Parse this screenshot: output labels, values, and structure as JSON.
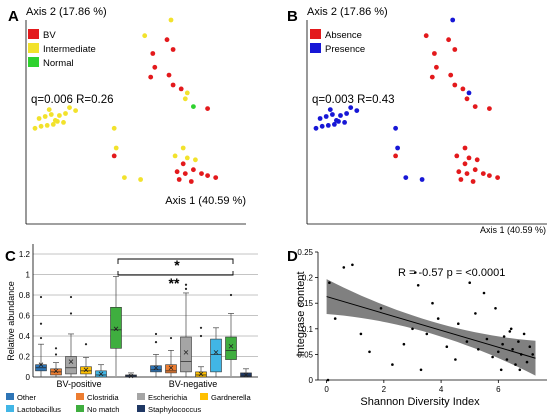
{
  "chart_data": [
    {
      "panel": "A",
      "type": "scatter",
      "xlabel": "Axis 1 (40.59 %)",
      "ylabel": "Axis 2 (17.86 %)",
      "stat": "q=0.006 R=0.26",
      "legend": [
        {
          "label": "BV",
          "color": "#e3191c"
        },
        {
          "label": "Intermediate",
          "color": "#f2e22c"
        },
        {
          "label": "Normal",
          "color": "#2ed22e"
        }
      ],
      "points": [
        {
          "x": 0.01,
          "y": 0.44,
          "g": 1
        },
        {
          "x": 0.04,
          "y": 0.45,
          "g": 1
        },
        {
          "x": 0.07,
          "y": 0.455,
          "g": 1
        },
        {
          "x": 0.1,
          "y": 0.46,
          "g": 1
        },
        {
          "x": 0.12,
          "y": 0.475,
          "g": 1
        },
        {
          "x": 0.15,
          "y": 0.47,
          "g": 1
        },
        {
          "x": 0.03,
          "y": 0.49,
          "g": 1
        },
        {
          "x": 0.06,
          "y": 0.5,
          "g": 1
        },
        {
          "x": 0.09,
          "y": 0.51,
          "g": 1
        },
        {
          "x": 0.13,
          "y": 0.505,
          "g": 1
        },
        {
          "x": 0.16,
          "y": 0.515,
          "g": 1
        },
        {
          "x": 0.08,
          "y": 0.535,
          "g": 1
        },
        {
          "x": 0.18,
          "y": 0.545,
          "g": 1
        },
        {
          "x": 0.21,
          "y": 0.53,
          "g": 1
        },
        {
          "x": 0.11,
          "y": 0.48,
          "g": 1
        },
        {
          "x": 0.4,
          "y": 0.44,
          "g": 1
        },
        {
          "x": 0.41,
          "y": 0.34,
          "g": 1
        },
        {
          "x": 0.45,
          "y": 0.19,
          "g": 1
        },
        {
          "x": 0.53,
          "y": 0.18,
          "g": 1
        },
        {
          "x": 0.55,
          "y": 0.91,
          "g": 1
        },
        {
          "x": 0.68,
          "y": 0.99,
          "g": 1
        },
        {
          "x": 0.7,
          "y": 0.3,
          "g": 1
        },
        {
          "x": 0.74,
          "y": 0.34,
          "g": 1
        },
        {
          "x": 0.76,
          "y": 0.29,
          "g": 1
        },
        {
          "x": 0.8,
          "y": 0.28,
          "g": 1
        },
        {
          "x": 0.75,
          "y": 0.59,
          "g": 1
        },
        {
          "x": 0.76,
          "y": 0.62,
          "g": 1
        },
        {
          "x": 0.79,
          "y": 0.55,
          "g": 2
        },
        {
          "x": 0.59,
          "y": 0.82,
          "g": 0
        },
        {
          "x": 0.69,
          "y": 0.84,
          "g": 0
        },
        {
          "x": 0.66,
          "y": 0.89,
          "g": 0
        },
        {
          "x": 0.6,
          "y": 0.75,
          "g": 0
        },
        {
          "x": 0.58,
          "y": 0.7,
          "g": 0
        },
        {
          "x": 0.67,
          "y": 0.71,
          "g": 0
        },
        {
          "x": 0.69,
          "y": 0.66,
          "g": 0
        },
        {
          "x": 0.73,
          "y": 0.64,
          "g": 0
        },
        {
          "x": 0.86,
          "y": 0.54,
          "g": 0
        },
        {
          "x": 0.4,
          "y": 0.3,
          "g": 0
        },
        {
          "x": 0.74,
          "y": 0.26,
          "g": 0
        },
        {
          "x": 0.71,
          "y": 0.22,
          "g": 0
        },
        {
          "x": 0.75,
          "y": 0.21,
          "g": 0
        },
        {
          "x": 0.79,
          "y": 0.23,
          "g": 0
        },
        {
          "x": 0.83,
          "y": 0.21,
          "g": 0
        },
        {
          "x": 0.86,
          "y": 0.2,
          "g": 0
        },
        {
          "x": 0.9,
          "y": 0.19,
          "g": 0
        },
        {
          "x": 0.78,
          "y": 0.17,
          "g": 0
        },
        {
          "x": 0.72,
          "y": 0.18,
          "g": 0
        }
      ]
    },
    {
      "panel": "B",
      "type": "scatter",
      "xlabel": "Axis 1 (40.59 %)",
      "ylabel": "Axis 2 (17.86 %)",
      "stat": "q=0.003 R=0.43",
      "legend": [
        {
          "label": "Absence",
          "color": "#e3191c"
        },
        {
          "label": "Presence",
          "color": "#1717d6"
        }
      ],
      "points": [
        {
          "x": 0.01,
          "y": 0.44,
          "g": 1
        },
        {
          "x": 0.04,
          "y": 0.45,
          "g": 1
        },
        {
          "x": 0.07,
          "y": 0.455,
          "g": 1
        },
        {
          "x": 0.1,
          "y": 0.46,
          "g": 1
        },
        {
          "x": 0.12,
          "y": 0.475,
          "g": 1
        },
        {
          "x": 0.15,
          "y": 0.47,
          "g": 1
        },
        {
          "x": 0.03,
          "y": 0.49,
          "g": 1
        },
        {
          "x": 0.06,
          "y": 0.5,
          "g": 1
        },
        {
          "x": 0.09,
          "y": 0.51,
          "g": 1
        },
        {
          "x": 0.13,
          "y": 0.505,
          "g": 1
        },
        {
          "x": 0.16,
          "y": 0.515,
          "g": 1
        },
        {
          "x": 0.08,
          "y": 0.535,
          "g": 1
        },
        {
          "x": 0.18,
          "y": 0.545,
          "g": 1
        },
        {
          "x": 0.21,
          "y": 0.53,
          "g": 1
        },
        {
          "x": 0.11,
          "y": 0.48,
          "g": 1
        },
        {
          "x": 0.4,
          "y": 0.44,
          "g": 1
        },
        {
          "x": 0.41,
          "y": 0.34,
          "g": 1
        },
        {
          "x": 0.45,
          "y": 0.19,
          "g": 1
        },
        {
          "x": 0.53,
          "y": 0.18,
          "g": 1
        },
        {
          "x": 0.68,
          "y": 0.99,
          "g": 1
        },
        {
          "x": 0.76,
          "y": 0.62,
          "g": 1
        },
        {
          "x": 0.55,
          "y": 0.91,
          "g": 0
        },
        {
          "x": 0.7,
          "y": 0.3,
          "g": 0
        },
        {
          "x": 0.74,
          "y": 0.34,
          "g": 0
        },
        {
          "x": 0.76,
          "y": 0.29,
          "g": 0
        },
        {
          "x": 0.8,
          "y": 0.28,
          "g": 0
        },
        {
          "x": 0.75,
          "y": 0.59,
          "g": 0
        },
        {
          "x": 0.79,
          "y": 0.55,
          "g": 0
        },
        {
          "x": 0.59,
          "y": 0.82,
          "g": 0
        },
        {
          "x": 0.69,
          "y": 0.84,
          "g": 0
        },
        {
          "x": 0.66,
          "y": 0.89,
          "g": 0
        },
        {
          "x": 0.6,
          "y": 0.75,
          "g": 0
        },
        {
          "x": 0.58,
          "y": 0.7,
          "g": 0
        },
        {
          "x": 0.67,
          "y": 0.71,
          "g": 0
        },
        {
          "x": 0.69,
          "y": 0.66,
          "g": 0
        },
        {
          "x": 0.73,
          "y": 0.64,
          "g": 0
        },
        {
          "x": 0.86,
          "y": 0.54,
          "g": 0
        },
        {
          "x": 0.4,
          "y": 0.3,
          "g": 0
        },
        {
          "x": 0.74,
          "y": 0.26,
          "g": 0
        },
        {
          "x": 0.71,
          "y": 0.22,
          "g": 0
        },
        {
          "x": 0.75,
          "y": 0.21,
          "g": 0
        },
        {
          "x": 0.79,
          "y": 0.23,
          "g": 0
        },
        {
          "x": 0.83,
          "y": 0.21,
          "g": 0
        },
        {
          "x": 0.86,
          "y": 0.2,
          "g": 0
        },
        {
          "x": 0.9,
          "y": 0.19,
          "g": 0
        },
        {
          "x": 0.78,
          "y": 0.17,
          "g": 0
        },
        {
          "x": 0.72,
          "y": 0.18,
          "g": 0
        }
      ]
    },
    {
      "panel": "C",
      "type": "boxplot",
      "ylabel": "Relative abundance",
      "ylim": [
        0,
        1.2
      ],
      "yticks": [
        "0",
        "0.2",
        "0.4",
        "0.6",
        "0.8",
        "1",
        "1.2"
      ],
      "groups": [
        "BV-positive",
        "BV-negative"
      ],
      "categories": [
        "Other",
        "Clostridia",
        "Escherichia",
        "Gardnerella",
        "Lactobacillus",
        "No match",
        "Staphylococcus"
      ],
      "colors": [
        "#2e75b6",
        "#ed7d31",
        "#a5a5a5",
        "#ffc000",
        "#41b6e6",
        "#3fae3f",
        "#1f3864"
      ],
      "stars": [
        "*",
        "**"
      ],
      "boxes": [
        {
          "group": 0,
          "cat": 0,
          "q1": 0.06,
          "med": 0.09,
          "q3": 0.12,
          "wlo": 0.0,
          "whi": 0.32,
          "mean": 0.12,
          "outliers": [
            0.78,
            0.52,
            0.38
          ]
        },
        {
          "group": 0,
          "cat": 1,
          "q1": 0.02,
          "med": 0.05,
          "q3": 0.08,
          "wlo": 0.0,
          "whi": 0.14,
          "mean": 0.06,
          "outliers": [
            0.28,
            0.22
          ]
        },
        {
          "group": 0,
          "cat": 2,
          "q1": 0.03,
          "med": 0.09,
          "q3": 0.2,
          "wlo": 0.0,
          "whi": 0.42,
          "mean": 0.15,
          "outliers": [
            0.78,
            0.62
          ]
        },
        {
          "group": 0,
          "cat": 3,
          "q1": 0.03,
          "med": 0.06,
          "q3": 0.1,
          "wlo": 0.0,
          "whi": 0.19,
          "mean": 0.07,
          "outliers": [
            0.32
          ]
        },
        {
          "group": 0,
          "cat": 4,
          "q1": 0.0,
          "med": 0.02,
          "q3": 0.06,
          "wlo": 0.0,
          "whi": 0.12,
          "mean": 0.03,
          "outliers": []
        },
        {
          "group": 0,
          "cat": 5,
          "q1": 0.28,
          "med": 0.46,
          "q3": 0.68,
          "wlo": 0.01,
          "whi": 0.98,
          "mean": 0.47,
          "outliers": []
        },
        {
          "group": 0,
          "cat": 6,
          "q1": 0.0,
          "med": 0.01,
          "q3": 0.02,
          "wlo": 0.0,
          "whi": 0.04,
          "mean": 0.01,
          "outliers": []
        },
        {
          "group": 1,
          "cat": 0,
          "q1": 0.05,
          "med": 0.07,
          "q3": 0.11,
          "wlo": 0.0,
          "whi": 0.22,
          "mean": 0.09,
          "outliers": [
            0.34,
            0.42
          ]
        },
        {
          "group": 1,
          "cat": 1,
          "q1": 0.04,
          "med": 0.06,
          "q3": 0.12,
          "wlo": 0.0,
          "whi": 0.26,
          "mean": 0.09,
          "outliers": [
            0.38
          ]
        },
        {
          "group": 1,
          "cat": 2,
          "q1": 0.05,
          "med": 0.15,
          "q3": 0.39,
          "wlo": 0.0,
          "whi": 0.82,
          "mean": 0.24,
          "outliers": [
            0.9,
            0.86
          ]
        },
        {
          "group": 1,
          "cat": 3,
          "q1": 0.0,
          "med": 0.02,
          "q3": 0.05,
          "wlo": 0.0,
          "whi": 0.1,
          "mean": 0.03,
          "outliers": [
            0.48,
            0.4
          ]
        },
        {
          "group": 1,
          "cat": 4,
          "q1": 0.05,
          "med": 0.22,
          "q3": 0.37,
          "wlo": 0.0,
          "whi": 0.48,
          "mean": 0.24,
          "outliers": []
        },
        {
          "group": 1,
          "cat": 5,
          "q1": 0.17,
          "med": 0.26,
          "q3": 0.39,
          "wlo": 0.01,
          "whi": 0.62,
          "mean": 0.3,
          "outliers": [
            0.8
          ]
        },
        {
          "group": 1,
          "cat": 6,
          "q1": 0.0,
          "med": 0.01,
          "q3": 0.04,
          "wlo": 0.0,
          "whi": 0.08,
          "mean": 0.02,
          "outliers": []
        }
      ]
    },
    {
      "panel": "D",
      "type": "scatter",
      "xlabel": "Shannon Diversity Index",
      "ylabel": "Integrase content",
      "stat": "R = -0.57   p = <0.0001",
      "xlim": [
        -0.3,
        7.7
      ],
      "ylim": [
        0,
        0.25
      ],
      "xticks": [
        "0",
        "2",
        "4",
        "6"
      ],
      "yticks": [
        "0",
        "0.05",
        "0.1",
        "0.15",
        "0.2",
        "0.25"
      ],
      "regression": {
        "intercept": 0.163,
        "slope": -0.0165,
        "x0": 0,
        "x1": 7.3
      },
      "points": [
        {
          "x": 0.05,
          "y": 0.0
        },
        {
          "x": 0.1,
          "y": 0.19
        },
        {
          "x": 0.6,
          "y": 0.22
        },
        {
          "x": 0.9,
          "y": 0.225
        },
        {
          "x": 0.3,
          "y": 0.12
        },
        {
          "x": 1.2,
          "y": 0.09
        },
        {
          "x": 1.5,
          "y": 0.055
        },
        {
          "x": 1.9,
          "y": 0.14
        },
        {
          "x": 2.3,
          "y": 0.03
        },
        {
          "x": 2.7,
          "y": 0.07
        },
        {
          "x": 3.0,
          "y": 0.1
        },
        {
          "x": 3.1,
          "y": 0.21
        },
        {
          "x": 3.2,
          "y": 0.185
        },
        {
          "x": 3.3,
          "y": 0.02
        },
        {
          "x": 3.5,
          "y": 0.09
        },
        {
          "x": 3.7,
          "y": 0.15
        },
        {
          "x": 3.9,
          "y": 0.12
        },
        {
          "x": 4.2,
          "y": 0.065
        },
        {
          "x": 4.5,
          "y": 0.04
        },
        {
          "x": 4.6,
          "y": 0.11
        },
        {
          "x": 4.9,
          "y": 0.075
        },
        {
          "x": 5.0,
          "y": 0.19
        },
        {
          "x": 5.2,
          "y": 0.13
        },
        {
          "x": 5.3,
          "y": 0.06
        },
        {
          "x": 5.5,
          "y": 0.17
        },
        {
          "x": 5.6,
          "y": 0.08
        },
        {
          "x": 5.8,
          "y": 0.045
        },
        {
          "x": 5.9,
          "y": 0.14
        },
        {
          "x": 6.0,
          "y": 0.055
        },
        {
          "x": 6.1,
          "y": 0.02
        },
        {
          "x": 6.2,
          "y": 0.085
        },
        {
          "x": 6.3,
          "y": 0.04
        },
        {
          "x": 6.4,
          "y": 0.095
        },
        {
          "x": 6.5,
          "y": 0.06
        },
        {
          "x": 6.6,
          "y": 0.03
        },
        {
          "x": 6.7,
          "y": 0.075
        },
        {
          "x": 6.8,
          "y": 0.05
        },
        {
          "x": 6.9,
          "y": 0.09
        },
        {
          "x": 7.0,
          "y": 0.035
        },
        {
          "x": 7.1,
          "y": 0.065
        },
        {
          "x": 6.45,
          "y": 0.1
        },
        {
          "x": 6.75,
          "y": 0.02
        },
        {
          "x": 7.2,
          "y": 0.05
        },
        {
          "x": 6.15,
          "y": 0.07
        }
      ]
    }
  ],
  "panel_letters": [
    "A",
    "B",
    "C",
    "D"
  ]
}
